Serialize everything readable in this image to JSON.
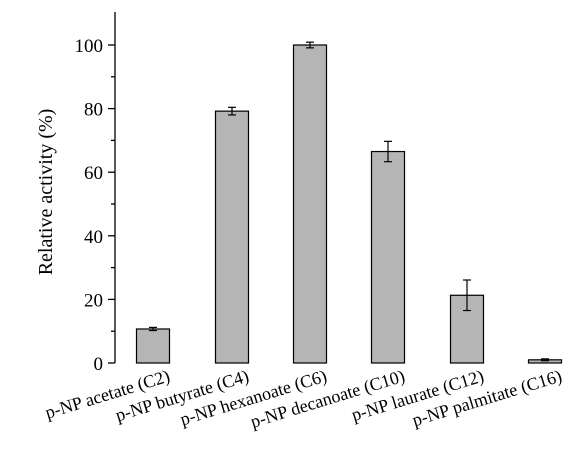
{
  "chart_data": {
    "type": "bar",
    "title": "",
    "xlabel": "",
    "ylabel": "Relative activity (%)",
    "ylim": [
      0,
      110
    ],
    "yticks": [
      0,
      20,
      40,
      60,
      80,
      100
    ],
    "grid": false,
    "bar_color": "#b5b5b5",
    "categories": [
      "p-NP acetate (C2)",
      "p-NP butyrate (C4)",
      "p-NP hexanoate (C6)",
      "p-NP decanoate (C10)",
      "p-NP laurate (C12)",
      "p-NP palmitate (C16)"
    ],
    "values": [
      10.7,
      79.2,
      100.0,
      66.5,
      21.3,
      1.0
    ],
    "errors": [
      0.5,
      1.2,
      0.9,
      3.2,
      4.8,
      0.3
    ]
  }
}
